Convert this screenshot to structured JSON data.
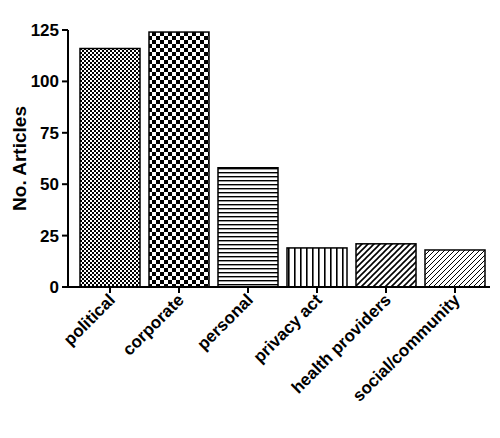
{
  "chart_data": {
    "type": "bar",
    "y_label": "No. Articles",
    "categories": [
      "political",
      "corporate",
      "personal",
      "privacy act",
      "health providers",
      "social/community"
    ],
    "values": [
      116,
      124,
      58,
      19,
      21,
      18
    ],
    "color": "#000000",
    "ylim": [
      0,
      125
    ],
    "yticks": [
      0,
      25,
      50,
      75,
      100,
      125
    ],
    "grid": false
  }
}
